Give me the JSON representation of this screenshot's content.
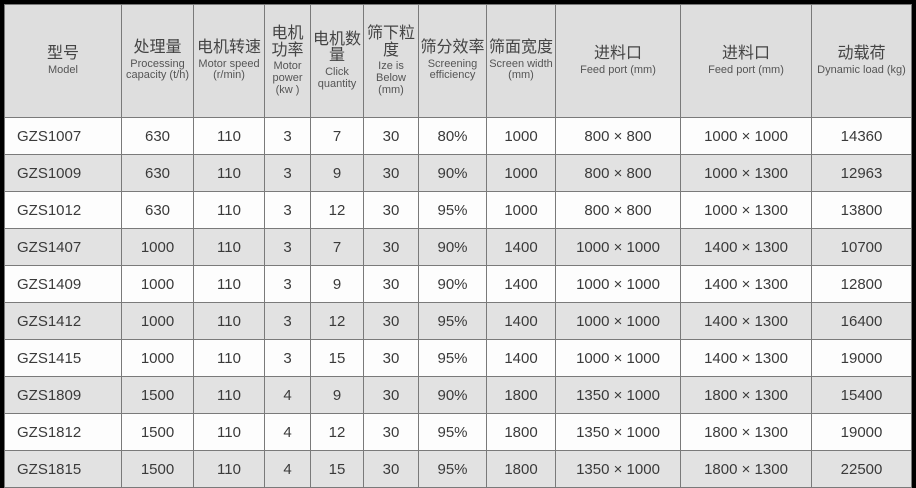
{
  "headers": [
    {
      "cn": "型号",
      "en": "Model"
    },
    {
      "cn": "处理量",
      "en": "Processing capacity (t/h)"
    },
    {
      "cn": "电机转速",
      "en": "Motor speed (r/min)"
    },
    {
      "cn": "电机功率",
      "en": "Motor power (kw )"
    },
    {
      "cn": "电机数量",
      "en": "Click quantity"
    },
    {
      "cn": "筛下粒度",
      "en": "Ize is Below (mm)"
    },
    {
      "cn": "筛分效率",
      "en": "Screening efficiency"
    },
    {
      "cn": "筛面宽度",
      "en": "Screen width (mm)"
    },
    {
      "cn": "进料口",
      "en": "Feed port (mm)"
    },
    {
      "cn": "进料口",
      "en": "Feed port (mm)"
    },
    {
      "cn": "动载荷",
      "en": "Dynamic load (kg)"
    }
  ],
  "rows": [
    [
      "GZS1007",
      "630",
      "110",
      "3",
      "7",
      "30",
      "80%",
      "1000",
      "800 × 800",
      "1000 × 1000",
      "14360"
    ],
    [
      "GZS1009",
      "630",
      "110",
      "3",
      "9",
      "30",
      "90%",
      "1000",
      "800 × 800",
      "1000 × 1300",
      "12963"
    ],
    [
      "GZS1012",
      "630",
      "110",
      "3",
      "12",
      "30",
      "95%",
      "1000",
      "800 × 800",
      "1000 × 1300",
      "13800"
    ],
    [
      "GZS1407",
      "1000",
      "110",
      "3",
      "7",
      "30",
      "90%",
      "1400",
      "1000 × 1000",
      "1400 × 1300",
      "10700"
    ],
    [
      "GZS1409",
      "1000",
      "110",
      "3",
      "9",
      "30",
      "90%",
      "1400",
      "1000 × 1000",
      "1400 × 1300",
      "12800"
    ],
    [
      "GZS1412",
      "1000",
      "110",
      "3",
      "12",
      "30",
      "95%",
      "1400",
      "1000 × 1000",
      "1400 × 1300",
      "16400"
    ],
    [
      "GZS1415",
      "1000",
      "110",
      "3",
      "15",
      "30",
      "95%",
      "1400",
      "1000 × 1000",
      "1400 × 1300",
      "19000"
    ],
    [
      "GZS1809",
      "1500",
      "110",
      "4",
      "9",
      "30",
      "90%",
      "1800",
      "1350 × 1000",
      "1800 × 1300",
      "15400"
    ],
    [
      "GZS1812",
      "1500",
      "110",
      "4",
      "12",
      "30",
      "95%",
      "1800",
      "1350 × 1000",
      "1800 × 1300",
      "19000"
    ],
    [
      "GZS1815",
      "1500",
      "110",
      "4",
      "15",
      "30",
      "95%",
      "1800",
      "1350 × 1000",
      "1800 × 1300",
      "22500"
    ]
  ]
}
